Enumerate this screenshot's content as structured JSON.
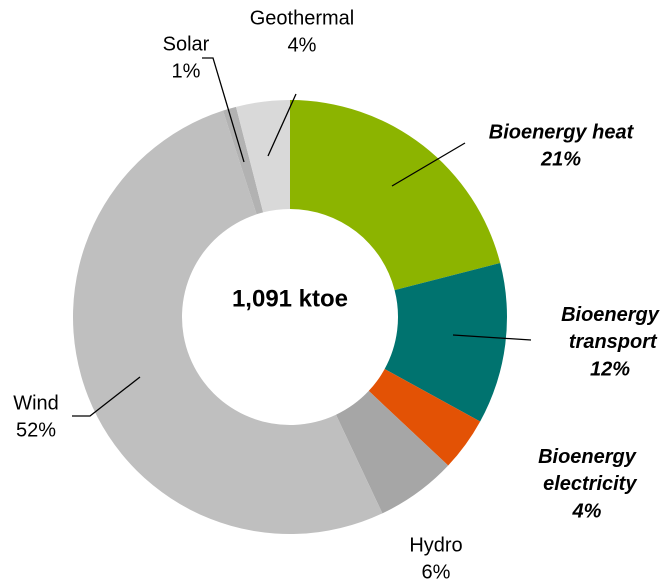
{
  "chart_data": {
    "type": "donut",
    "center_label": "1,091 ktoe",
    "categories": [
      "Bioenergy heat",
      "Bioenergy transport",
      "Bioenergy electricity",
      "Hydro",
      "Wind",
      "Solar",
      "Geothermal"
    ],
    "values": [
      21,
      12,
      4,
      6,
      52,
      1,
      4
    ],
    "value_labels": [
      "21%",
      "12%",
      "4%",
      "6%",
      "52%",
      "1%",
      "4%"
    ],
    "colors": [
      "#8cb400",
      "#00736f",
      "#e35205",
      "#a6a6a6",
      "#bfbfbf",
      "#b2b2b2",
      "#d9d9d9"
    ]
  }
}
